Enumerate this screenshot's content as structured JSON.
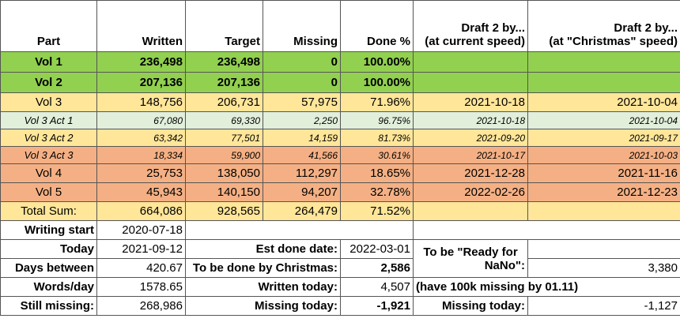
{
  "header": {
    "part": "Part",
    "written": "Written",
    "target": "Target",
    "missing": "Missing",
    "done": "Done %",
    "draft_current": [
      "Draft 2 by...",
      "(at current speed)"
    ],
    "draft_christmas": [
      "Draft 2 by...",
      "(at \"Christmas\" speed)"
    ]
  },
  "rows": [
    [
      "Vol 1",
      "236,498",
      "236,498",
      "0",
      "100.00%"
    ],
    [
      "Vol 2",
      "207,136",
      "207,136",
      "0",
      "100.00%"
    ],
    [
      "Vol 3",
      "148,756",
      "206,731",
      "57,975",
      "71.96%",
      "2021-10-18",
      "2021-10-04"
    ],
    [
      "Vol 3 Act 1",
      "67,080",
      "69,330",
      "2,250",
      "96.75%",
      "2021-10-18",
      "2021-10-04"
    ],
    [
      "Vol 3 Act 2",
      "63,342",
      "77,501",
      "14,159",
      "81.73%",
      "2021-09-20",
      "2021-09-17"
    ],
    [
      "Vol 3 Act 3",
      "18,334",
      "59,900",
      "41,566",
      "30.61%",
      "2021-10-17",
      "2021-10-03"
    ],
    [
      "Vol 4",
      "25,753",
      "138,050",
      "112,297",
      "18.65%",
      "2021-12-28",
      "2021-11-16"
    ],
    [
      "Vol 5",
      "45,943",
      "140,150",
      "94,207",
      "32.78%",
      "2022-02-26",
      "2021-12-23"
    ],
    [
      "Total Sum:",
      "664,086",
      "928,565",
      "264,479",
      "71.52%"
    ]
  ],
  "summary": {
    "writing_start": {
      "label": "Writing start",
      "value": "2020-07-18"
    },
    "today": {
      "label": "Today",
      "value": "2021-09-12"
    },
    "days_between": {
      "label": "Days between",
      "value": "420.67"
    },
    "words_day": {
      "label": "Words/day",
      "value": "1578.65"
    },
    "still_missing": {
      "label": "Still missing:",
      "value": "268,986"
    },
    "est_done_date": {
      "label": "Est done date:",
      "value": "2022-03-01"
    },
    "done_by_christmas": {
      "label": "To be done by Christmas:",
      "value": "2,586"
    },
    "written_today": {
      "label": "Written today:",
      "value": "4,507"
    },
    "missing_today": {
      "label": "Missing today:",
      "value": "-1,921"
    },
    "nano": {
      "label": [
        "To be \"Ready for",
        "NaNo\":"
      ],
      "value": "3,380"
    },
    "nano_note": "(have 100k missing by 01.11)",
    "nano_missing_today": {
      "label": "Missing today:",
      "value": "-1,127"
    }
  }
}
